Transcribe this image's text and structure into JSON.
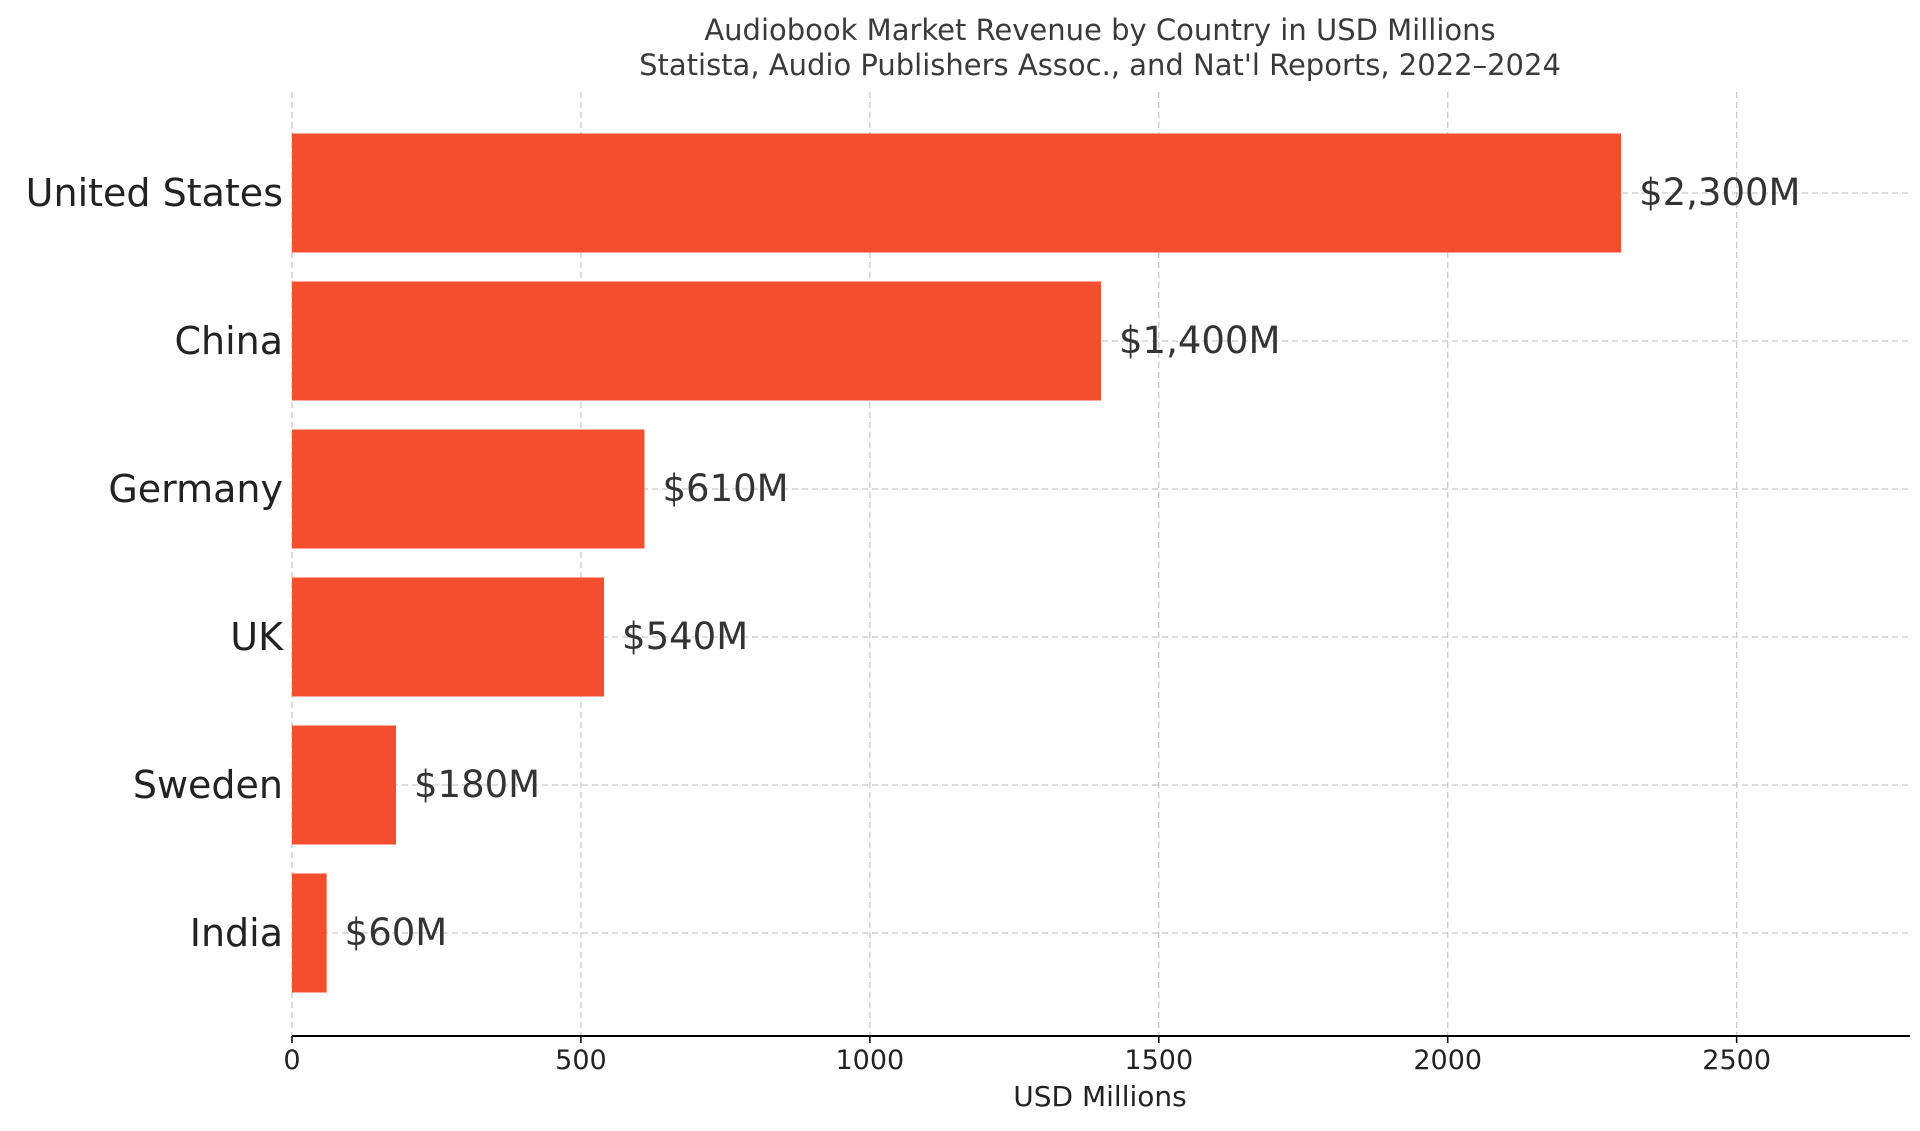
{
  "chart_data": {
    "type": "bar",
    "orientation": "horizontal",
    "title": "Audiobook Market Revenue by Country in USD Millions",
    "subtitle": "Statista, Audio Publishers Assoc., and Nat'l Reports, 2022–2024",
    "xlabel": "USD Millions",
    "ylabel": "",
    "categories": [
      "United States",
      "China",
      "Germany",
      "UK",
      "Sweden",
      "India"
    ],
    "values": [
      2300,
      1400,
      610,
      540,
      180,
      60
    ],
    "value_labels": [
      "$2,300M",
      "$1,400M",
      "$610M",
      "$540M",
      "$180M",
      "$60M"
    ],
    "xlim": [
      0,
      2800
    ],
    "xticks": [
      0,
      500,
      1000,
      1500,
      2000,
      2500
    ],
    "xtick_labels": [
      "0",
      "500",
      "1000",
      "1500",
      "2000",
      "2500"
    ],
    "grid": true,
    "bar_color": "#f44e2f"
  }
}
